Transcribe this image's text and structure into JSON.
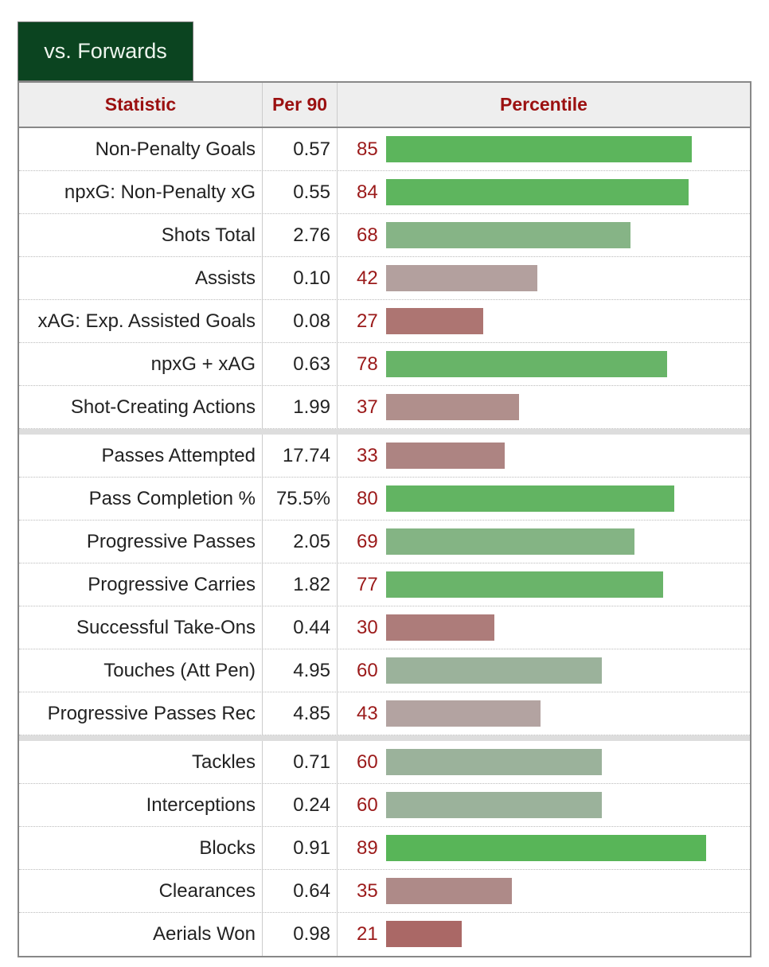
{
  "tab_label": "vs. Forwards",
  "headers": {
    "statistic": "Statistic",
    "per90": "Per 90",
    "percentile": "Percentile"
  },
  "chart_data": {
    "type": "bar",
    "title": "vs. Forwards",
    "xlim": [
      0,
      100
    ],
    "groups": [
      [
        {
          "stat": "Non-Penalty Goals",
          "per90": "0.57",
          "pct": 85,
          "color": "#5cb55c"
        },
        {
          "stat": "npxG: Non-Penalty xG",
          "per90": "0.55",
          "pct": 84,
          "color": "#5eb55e"
        },
        {
          "stat": "Shots Total",
          "per90": "2.76",
          "pct": 68,
          "color": "#86b486"
        },
        {
          "stat": "Assists",
          "per90": "0.10",
          "pct": 42,
          "color": "#b3a09e"
        },
        {
          "stat": "xAG: Exp. Assisted Goals",
          "per90": "0.08",
          "pct": 27,
          "color": "#ad7572"
        },
        {
          "stat": "npxG + xAG",
          "per90": "0.63",
          "pct": 78,
          "color": "#68b468"
        },
        {
          "stat": "Shot-Creating Actions",
          "per90": "1.99",
          "pct": 37,
          "color": "#b08f8c"
        }
      ],
      [
        {
          "stat": "Passes Attempted",
          "per90": "17.74",
          "pct": 33,
          "color": "#ad8482"
        },
        {
          "stat": "Pass Completion %",
          "per90": "75.5%",
          "pct": 80,
          "color": "#62b462"
        },
        {
          "stat": "Progressive Passes",
          "per90": "2.05",
          "pct": 69,
          "color": "#84b484"
        },
        {
          "stat": "Progressive Carries",
          "per90": "1.82",
          "pct": 77,
          "color": "#6ab46a"
        },
        {
          "stat": "Successful Take-Ons",
          "per90": "0.44",
          "pct": 30,
          "color": "#ad7c7a"
        },
        {
          "stat": "Touches (Att Pen)",
          "per90": "4.95",
          "pct": 60,
          "color": "#9bb29b"
        },
        {
          "stat": "Progressive Passes Rec",
          "per90": "4.85",
          "pct": 43,
          "color": "#b3a3a1"
        }
      ],
      [
        {
          "stat": "Tackles",
          "per90": "0.71",
          "pct": 60,
          "color": "#9bb29b"
        },
        {
          "stat": "Interceptions",
          "per90": "0.24",
          "pct": 60,
          "color": "#9bb29b"
        },
        {
          "stat": "Blocks",
          "per90": "0.91",
          "pct": 89,
          "color": "#58b558"
        },
        {
          "stat": "Clearances",
          "per90": "0.64",
          "pct": 35,
          "color": "#ae8a88"
        },
        {
          "stat": "Aerials Won",
          "per90": "0.98",
          "pct": 21,
          "color": "#aa6866"
        }
      ]
    ]
  }
}
